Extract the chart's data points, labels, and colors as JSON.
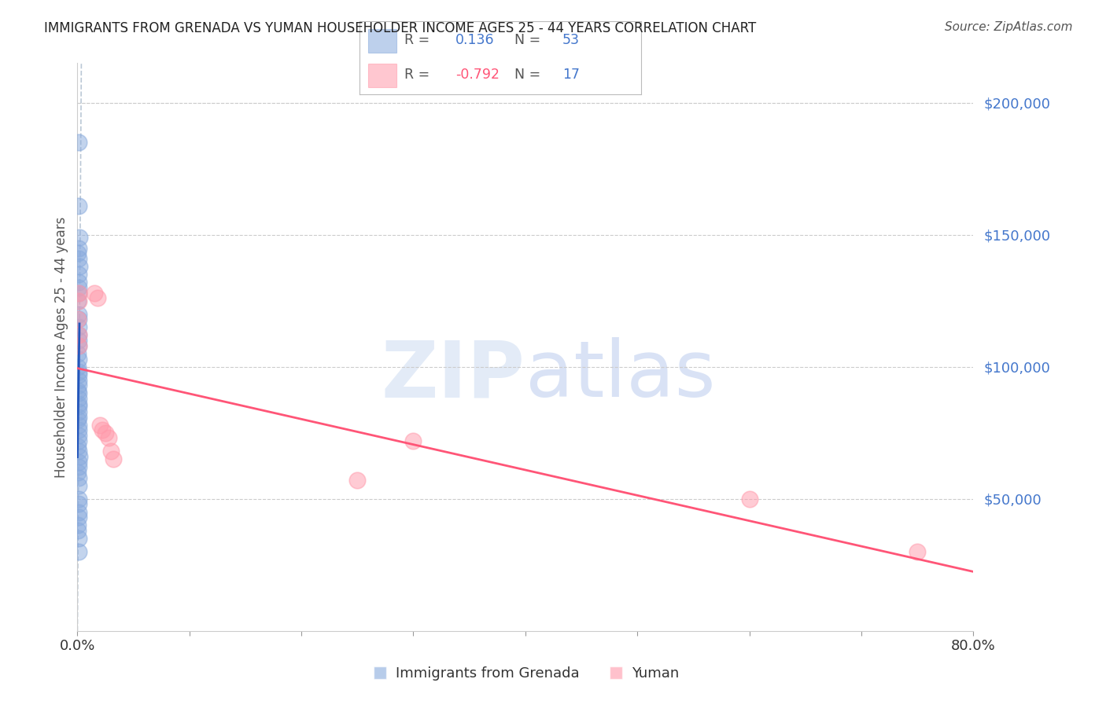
{
  "title": "IMMIGRANTS FROM GRENADA VS YUMAN HOUSEHOLDER INCOME AGES 25 - 44 YEARS CORRELATION CHART",
  "source": "Source: ZipAtlas.com",
  "ylabel": "Householder Income Ages 25 - 44 years",
  "watermark": "ZIPatlas",
  "legend_labels": [
    "Immigrants from Grenada",
    "Yuman"
  ],
  "r_grenada": 0.136,
  "n_grenada": 53,
  "r_yuman": -0.792,
  "n_yuman": 17,
  "blue_color": "#88AADD",
  "pink_color": "#FF99AA",
  "blue_line_color": "#2255BB",
  "pink_line_color": "#FF5577",
  "gray_dash_color": "#AABBCC",
  "right_axis_color": "#4477CC",
  "title_color": "#222222",
  "background_color": "#FFFFFF",
  "xlim": [
    0.0,
    0.8
  ],
  "ylim": [
    0,
    215000
  ],
  "yticks": [
    0,
    50000,
    100000,
    150000,
    200000
  ],
  "xtick_positions": [
    0.0,
    0.1,
    0.2,
    0.3,
    0.4,
    0.5,
    0.6,
    0.7,
    0.8
  ],
  "grenada_x": [
    0.0008,
    0.001,
    0.0015,
    0.0012,
    0.0005,
    0.001,
    0.0018,
    0.001,
    0.0008,
    0.0009,
    0.0011,
    0.0007,
    0.001,
    0.0013,
    0.0009,
    0.0008,
    0.001,
    0.0012,
    0.0006,
    0.001,
    0.0007,
    0.0009,
    0.001,
    0.0011,
    0.0008,
    0.0007,
    0.001,
    0.0009,
    0.001,
    0.0008,
    0.001,
    0.0012,
    0.0007,
    0.0008,
    0.001,
    0.0009,
    0.0011,
    0.0007,
    0.001,
    0.0015,
    0.0009,
    0.0008,
    0.0007,
    0.0012,
    0.001,
    0.001,
    0.0008,
    0.0011,
    0.001,
    0.0007,
    0.0006,
    0.0009,
    0.0008
  ],
  "grenada_y": [
    185000,
    161000,
    149000,
    145000,
    143000,
    141000,
    138000,
    135000,
    132000,
    130000,
    128000,
    125000,
    120000,
    118000,
    115000,
    112000,
    110000,
    108000,
    105000,
    103000,
    100000,
    98000,
    97000,
    95000,
    93000,
    91000,
    90000,
    88000,
    86000,
    85000,
    83000,
    81000,
    80000,
    78000,
    76000,
    74000,
    72000,
    70000,
    68000,
    66000,
    64000,
    62000,
    60000,
    58000,
    55000,
    50000,
    48000,
    45000,
    43000,
    40000,
    38000,
    35000,
    30000
  ],
  "yuman_x": [
    0.0007,
    0.0009,
    0.0008,
    0.001,
    0.0012,
    0.015,
    0.018,
    0.02,
    0.022,
    0.025,
    0.028,
    0.03,
    0.032,
    0.25,
    0.3,
    0.6,
    0.75
  ],
  "yuman_y": [
    118000,
    112000,
    108000,
    128000,
    125000,
    128000,
    126000,
    78000,
    76000,
    75000,
    73000,
    68000,
    65000,
    57000,
    72000,
    50000,
    30000
  ]
}
